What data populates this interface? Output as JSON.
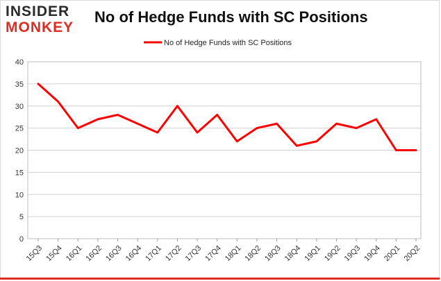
{
  "logo": {
    "line1": "INSIDER",
    "line2": "MONKEY"
  },
  "colors": {
    "series": "#ff0000",
    "grid": "#d0d0d0",
    "accent": "#e02b20"
  },
  "chart_data": {
    "type": "line",
    "title": "No of Hedge Funds with SC Positions",
    "xlabel": "",
    "ylabel": "",
    "ylim": [
      0,
      40
    ],
    "yticks": [
      0,
      5,
      10,
      15,
      20,
      25,
      30,
      35,
      40
    ],
    "grid": true,
    "legend": "top-center",
    "categories": [
      "15Q3",
      "15Q4",
      "16Q1",
      "16Q2",
      "16Q3",
      "16Q4",
      "17Q1",
      "17Q2",
      "17Q3",
      "17Q4",
      "18Q1",
      "18Q2",
      "18Q3",
      "18Q4",
      "19Q1",
      "19Q2",
      "19Q3",
      "19Q4",
      "20Q1",
      "20Q2"
    ],
    "series": [
      {
        "name": "No of Hedge Funds with SC Positions",
        "values": [
          35,
          31,
          25,
          27,
          28,
          26,
          24,
          30,
          24,
          28,
          22,
          25,
          26,
          21,
          22,
          26,
          25,
          27,
          20,
          20
        ]
      }
    ]
  }
}
